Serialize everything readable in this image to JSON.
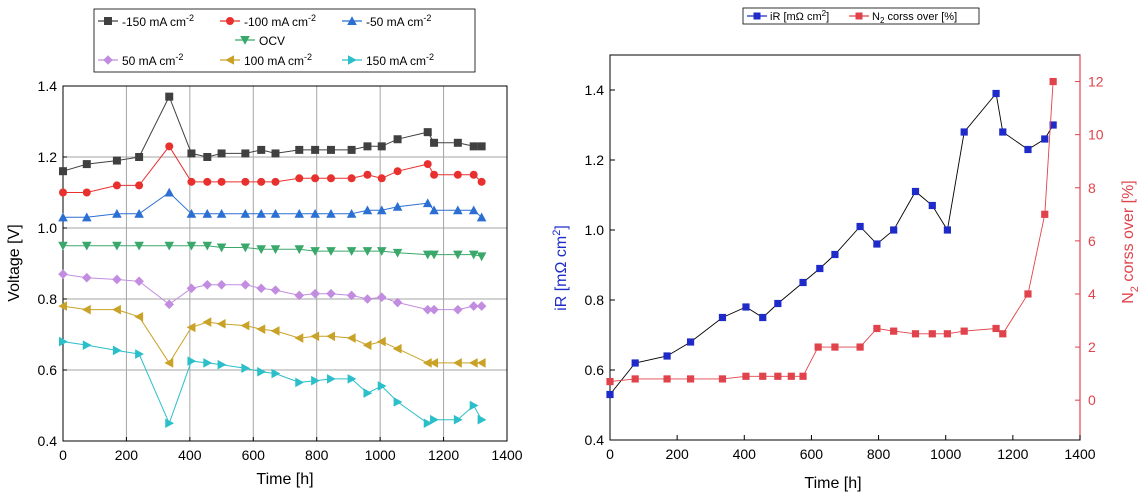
{
  "chart_data": [
    {
      "type": "line",
      "xlabel": "Time [h]",
      "ylabel": "Voltage [V]",
      "xlim": [
        0,
        1400
      ],
      "ylim": [
        0.4,
        1.4
      ],
      "xticks": [
        "0",
        "200",
        "400",
        "600",
        "800",
        "1000",
        "1200",
        "1400"
      ],
      "yticks": [
        "0.4",
        "0.6",
        "0.8",
        "1.0",
        "1.2",
        "1.4"
      ],
      "grid": true,
      "legend_placement": "top (above plot)",
      "x": [
        0,
        75,
        170,
        240,
        335,
        405,
        455,
        500,
        575,
        625,
        670,
        745,
        795,
        845,
        910,
        960,
        1005,
        1055,
        1150,
        1170,
        1245,
        1295,
        1320
      ],
      "series": [
        {
          "name": "-150 mA cm",
          "sup": "-2",
          "color": "#404040",
          "marker": "square",
          "values": [
            1.16,
            1.18,
            1.19,
            1.2,
            1.37,
            1.21,
            1.2,
            1.21,
            1.21,
            1.22,
            1.21,
            1.22,
            1.22,
            1.22,
            1.22,
            1.23,
            1.23,
            1.25,
            1.27,
            1.24,
            1.24,
            1.23,
            1.23
          ]
        },
        {
          "name": "-100 mA cm",
          "sup": "-2",
          "color": "#e8312f",
          "marker": "circle",
          "values": [
            1.1,
            1.1,
            1.12,
            1.12,
            1.23,
            1.13,
            1.13,
            1.13,
            1.13,
            1.13,
            1.13,
            1.14,
            1.14,
            1.14,
            1.14,
            1.15,
            1.14,
            1.16,
            1.18,
            1.15,
            1.15,
            1.15,
            1.13
          ]
        },
        {
          "name": "-50 mA cm",
          "sup": "-2",
          "color": "#2a6fd1",
          "marker": "triangle-up",
          "values": [
            1.03,
            1.03,
            1.04,
            1.04,
            1.1,
            1.04,
            1.04,
            1.04,
            1.04,
            1.04,
            1.04,
            1.04,
            1.04,
            1.04,
            1.04,
            1.05,
            1.05,
            1.06,
            1.07,
            1.05,
            1.05,
            1.05,
            1.03
          ]
        },
        {
          "name": "OCV",
          "sup": "",
          "color": "#3aa86b",
          "marker": "triangle-down",
          "values": [
            0.95,
            0.95,
            0.95,
            0.95,
            0.95,
            0.95,
            0.95,
            0.945,
            0.945,
            0.94,
            0.94,
            0.94,
            0.935,
            0.935,
            0.935,
            0.935,
            0.935,
            0.93,
            0.925,
            0.925,
            0.925,
            0.925,
            0.92
          ]
        },
        {
          "name": "50 mA cm",
          "sup": "-2",
          "color": "#c28de0",
          "marker": "diamond",
          "values": [
            0.87,
            0.86,
            0.855,
            0.85,
            0.785,
            0.83,
            0.84,
            0.84,
            0.84,
            0.83,
            0.825,
            0.81,
            0.815,
            0.815,
            0.81,
            0.8,
            0.805,
            0.79,
            0.77,
            0.77,
            0.77,
            0.78,
            0.78
          ]
        },
        {
          "name": "100 mA cm",
          "sup": "-2",
          "color": "#c9a227",
          "marker": "triangle-left",
          "values": [
            0.78,
            0.77,
            0.77,
            0.75,
            0.62,
            0.72,
            0.735,
            0.73,
            0.725,
            0.715,
            0.71,
            0.69,
            0.695,
            0.695,
            0.69,
            0.67,
            0.68,
            0.66,
            0.62,
            0.62,
            0.62,
            0.62,
            0.62
          ]
        },
        {
          "name": "150 mA cm",
          "sup": "-2",
          "color": "#2bbfc9",
          "marker": "triangle-right",
          "values": [
            0.68,
            0.67,
            0.655,
            0.645,
            0.45,
            0.625,
            0.62,
            0.615,
            0.605,
            0.595,
            0.59,
            0.565,
            0.57,
            0.575,
            0.575,
            0.535,
            0.555,
            0.51,
            0.45,
            0.46,
            0.46,
            0.5,
            0.46
          ]
        }
      ]
    },
    {
      "type": "line",
      "xlabel": "Time [h]",
      "ylabel_left": "iR [mΩ cm",
      "ylabel_left_sup": "2",
      "ylabel_left_tail": "]",
      "ylabel_right_pre": "N",
      "ylabel_right_sub": "2",
      "ylabel_right_tail": " corss over [%]",
      "xlim": [
        0,
        1400
      ],
      "ylim_left": [
        0.4,
        1.5
      ],
      "ylim_right": [
        -1.5,
        13.0
      ],
      "xticks": [
        "0",
        "200",
        "400",
        "600",
        "800",
        "1000",
        "1200",
        "1400"
      ],
      "yticks_left": [
        "0.4",
        "0.6",
        "0.8",
        "1.0",
        "1.2",
        "1.4"
      ],
      "yticks_right": [
        "0",
        "2",
        "4",
        "6",
        "8",
        "10",
        "12"
      ],
      "grid": false,
      "legend_placement": "top (above plot)",
      "series": [
        {
          "name_pre": "iR [mΩ cm",
          "name_sup": "2",
          "name_tail": "]",
          "color": "#1e2bc8",
          "marker": "square",
          "axis": "left",
          "x": [
            0,
            75,
            170,
            240,
            335,
            405,
            455,
            500,
            575,
            625,
            670,
            745,
            795,
            845,
            910,
            960,
            1005,
            1055,
            1150,
            1170,
            1245,
            1295,
            1320
          ],
          "values": [
            0.53,
            0.62,
            0.64,
            0.68,
            0.75,
            0.78,
            0.75,
            0.79,
            0.85,
            0.89,
            0.93,
            1.01,
            0.96,
            1.0,
            1.11,
            1.07,
            1.0,
            1.28,
            1.39,
            1.28,
            1.23,
            1.26,
            1.3
          ]
        },
        {
          "name_pre": "N",
          "name_sub": "2",
          "name_tail": " corss over [%]",
          "color": "#e0434b",
          "marker": "square",
          "axis": "right",
          "x": [
            0,
            75,
            170,
            240,
            335,
            405,
            455,
            500,
            540,
            575,
            620,
            670,
            745,
            795,
            845,
            910,
            960,
            1005,
            1055,
            1150,
            1170,
            1245,
            1295,
            1320
          ],
          "values": [
            0.7,
            0.8,
            0.8,
            0.8,
            0.8,
            0.9,
            0.9,
            0.9,
            0.9,
            0.9,
            2.0,
            2.0,
            2.0,
            2.7,
            2.6,
            2.5,
            2.5,
            2.5,
            2.6,
            2.7,
            2.5,
            4.0,
            7.0,
            12.0
          ]
        }
      ]
    }
  ]
}
